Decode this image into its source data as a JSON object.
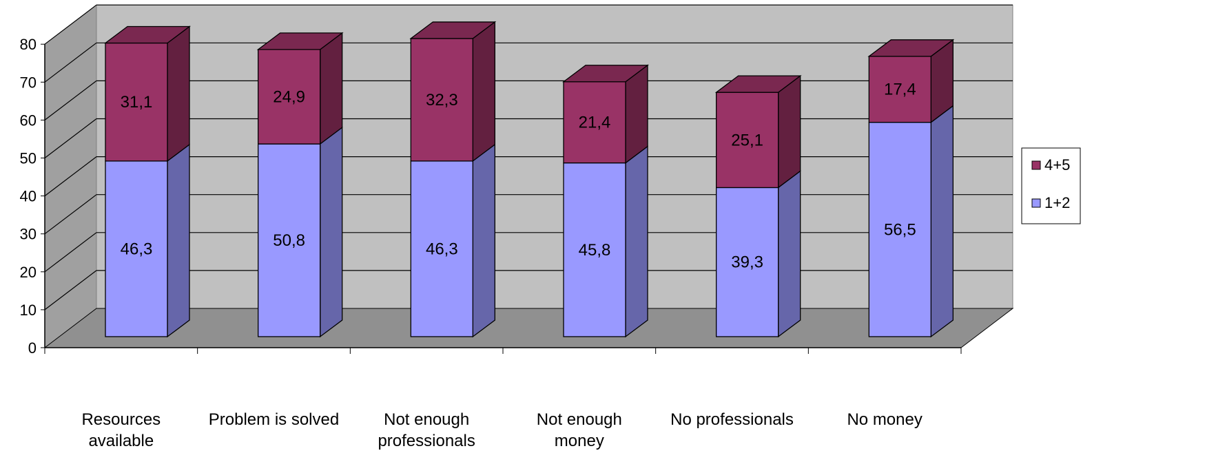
{
  "chart_data": {
    "type": "bar",
    "stacked": true,
    "three_d": true,
    "categories": [
      [
        "Resources",
        "available"
      ],
      [
        "Problem is solved"
      ],
      [
        "Not enough",
        "professionals"
      ],
      [
        "Not enough",
        "money"
      ],
      [
        "No professionals"
      ],
      [
        "No money"
      ]
    ],
    "series": [
      {
        "name": "1+2",
        "values": [
          46.3,
          50.8,
          46.3,
          45.8,
          39.3,
          56.5
        ],
        "labels": [
          "46,3",
          "50,8",
          "46,3",
          "45,8",
          "39,3",
          "56,5"
        ],
        "color_front": "#9999ff",
        "color_side": "#6666aa",
        "color_top": "#b3b3ff"
      },
      {
        "name": "4+5",
        "values": [
          31.1,
          24.9,
          32.3,
          21.4,
          25.1,
          17.4
        ],
        "labels": [
          "31,1",
          "24,9",
          "32,3",
          "21,4",
          "25,1",
          "17,4"
        ],
        "color_front": "#993366",
        "color_side": "#632040",
        "color_top": "#7a2850"
      }
    ],
    "ylim": [
      0,
      80
    ],
    "yticks": [
      "0",
      "10",
      "20",
      "30",
      "40",
      "50",
      "60",
      "70",
      "80"
    ],
    "grid": true,
    "legend": {
      "placement": "right",
      "entries": [
        "4+5",
        "1+2"
      ]
    },
    "colors": {
      "back_wall": "#c0c0c0",
      "side_wall": "#a0a0a0",
      "floor": "#909090",
      "grid_line": "#000000"
    }
  }
}
